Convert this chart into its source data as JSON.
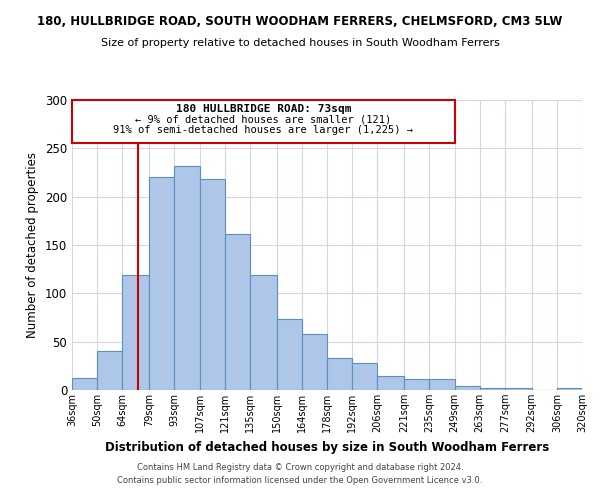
{
  "title_line1": "180, HULLBRIDGE ROAD, SOUTH WOODHAM FERRERS, CHELMSFORD, CM3 5LW",
  "title_line2": "Size of property relative to detached houses in South Woodham Ferrers",
  "xlabel": "Distribution of detached houses by size in South Woodham Ferrers",
  "ylabel": "Number of detached properties",
  "bin_labels": [
    "36sqm",
    "50sqm",
    "64sqm",
    "79sqm",
    "93sqm",
    "107sqm",
    "121sqm",
    "135sqm",
    "150sqm",
    "164sqm",
    "178sqm",
    "192sqm",
    "206sqm",
    "221sqm",
    "235sqm",
    "249sqm",
    "263sqm",
    "277sqm",
    "292sqm",
    "306sqm",
    "320sqm"
  ],
  "bar_values": [
    12,
    40,
    119,
    220,
    232,
    218,
    161,
    119,
    73,
    58,
    33,
    28,
    14,
    11,
    11,
    4,
    2,
    2,
    0,
    2
  ],
  "bar_color": "#aec6e8",
  "bar_edge_color": "#5a8fc2",
  "property_value": 73,
  "property_label": "180 HULLBRIDGE ROAD: 73sqm",
  "annotation_line2": "← 9% of detached houses are smaller (121)",
  "annotation_line3": "91% of semi-detached houses are larger (1,225) →",
  "vline_color": "#cc0000",
  "box_edge_color": "#cc0000",
  "ylim": [
    0,
    300
  ],
  "yticks": [
    0,
    50,
    100,
    150,
    200,
    250,
    300
  ],
  "footer_line1": "Contains HM Land Registry data © Crown copyright and database right 2024.",
  "footer_line2": "Contains public sector information licensed under the Open Government Licence v3.0.",
  "background_color": "#ffffff",
  "grid_color": "#d0d8e8",
  "label_values": [
    36,
    50,
    64,
    79,
    93,
    107,
    121,
    135,
    150,
    164,
    178,
    192,
    206,
    221,
    235,
    249,
    263,
    277,
    292,
    306,
    320
  ]
}
